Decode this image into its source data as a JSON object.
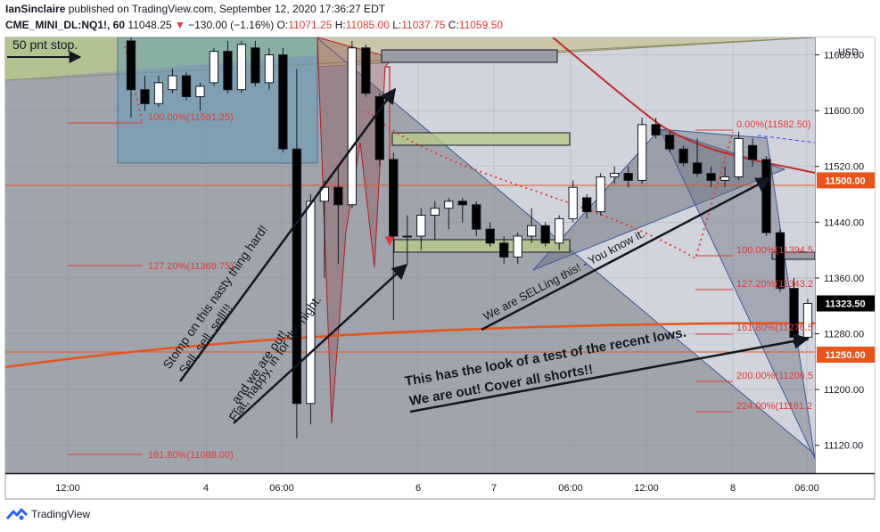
{
  "header": {
    "author": "IanSinclaire",
    "published_text": "published on TradingView.com, September 12, 2020 17:36:27 EDT",
    "symbol": "CME_MINI_DL:NQ1!, 60",
    "last": "11048.25",
    "change": "−130.00 (−1.16%)",
    "o_label": "O:",
    "o_value": "11071.25",
    "h_label": "H:",
    "h_value": "11085.00",
    "l_label": "L:",
    "l_value": "11037.75",
    "c_label": "C:",
    "c_value": "11059.50"
  },
  "footer": {
    "brand": "TradingView"
  },
  "colors": {
    "up": "#ffffff",
    "down": "#000000",
    "price_label": "#e8541a",
    "fib": "#e53935",
    "ma": "#c62828",
    "annot": "#131722"
  },
  "chart_data": {
    "type": "candlestick",
    "currency": "USD",
    "ylim": [
      11080,
      11705
    ],
    "y_ticks": [
      11120,
      11200,
      11280,
      11360,
      11440,
      11520,
      11600,
      11680
    ],
    "y_tick_labels": [
      "11120.00",
      "11200.00",
      "11280.00",
      "11360.00",
      "11440.00",
      "11520.00",
      "11600.00",
      "11680.00"
    ],
    "x_tick_labels": [
      "12:00",
      "4",
      "06:00",
      "6",
      "7",
      "06:00",
      "12:00",
      "8",
      "06:00"
    ],
    "price_labels": [
      {
        "value": 11500,
        "text": "11500.00",
        "color": "#e8541a"
      },
      {
        "value": 11323.5,
        "text": "11323.50",
        "color": "#000000"
      },
      {
        "value": 11250,
        "text": "11250.00",
        "color": "#e8541a"
      }
    ],
    "fib_labels": [
      {
        "text": "100.00%(11591.25)",
        "value": 11591.25
      },
      {
        "text": "127.20%(11369.75)",
        "value": 11369.75
      },
      {
        "text": "161.80%(11088.00)",
        "value": 11088
      },
      {
        "text": "0.00%(11582.50)",
        "value": 11582.5
      },
      {
        "text": "100.00%(11394.5",
        "value": 11394.5
      },
      {
        "text": "127.20%(11343.2",
        "value": 11343.2
      },
      {
        "text": "161.80%(11276.5",
        "value": 11276.5
      },
      {
        "text": "200.00%(11206.5",
        "value": 11206.5
      },
      {
        "text": "224.00%(11161.2",
        "value": 11161.2
      }
    ],
    "candles": [
      {
        "o": 11700,
        "h": 11705,
        "l": 11590,
        "c": 11630
      },
      {
        "o": 11630,
        "h": 11650,
        "l": 11600,
        "c": 11610
      },
      {
        "o": 11610,
        "h": 11650,
        "l": 11605,
        "c": 11640
      },
      {
        "o": 11630,
        "h": 11660,
        "l": 11625,
        "c": 11650
      },
      {
        "o": 11650,
        "h": 11655,
        "l": 11615,
        "c": 11620
      },
      {
        "o": 11620,
        "h": 11640,
        "l": 11600,
        "c": 11635
      },
      {
        "o": 11640,
        "h": 11690,
        "l": 11635,
        "c": 11685
      },
      {
        "o": 11685,
        "h": 11700,
        "l": 11625,
        "c": 11630
      },
      {
        "o": 11630,
        "h": 11700,
        "l": 11625,
        "c": 11695
      },
      {
        "o": 11690,
        "h": 11700,
        "l": 11635,
        "c": 11640
      },
      {
        "o": 11640,
        "h": 11690,
        "l": 11630,
        "c": 11680
      },
      {
        "o": 11680,
        "h": 11690,
        "l": 11540,
        "c": 11545
      },
      {
        "o": 11545,
        "h": 11660,
        "l": 11130,
        "c": 11180
      },
      {
        "o": 11180,
        "h": 11480,
        "l": 11150,
        "c": 11470
      },
      {
        "o": 11470,
        "h": 11500,
        "l": 11360,
        "c": 11490
      },
      {
        "o": 11490,
        "h": 11520,
        "l": 11380,
        "c": 11465
      },
      {
        "o": 11465,
        "h": 11700,
        "l": 11460,
        "c": 11690
      },
      {
        "o": 11690,
        "h": 11695,
        "l": 11620,
        "c": 11625
      },
      {
        "o": 11620,
        "h": 11625,
        "l": 11520,
        "c": 11530
      },
      {
        "o": 11530,
        "h": 11540,
        "l": 11300,
        "c": 11420
      },
      {
        "o": 11420,
        "h": 11450,
        "l": 11380,
        "c": 11420
      },
      {
        "o": 11420,
        "h": 11460,
        "l": 11400,
        "c": 11450
      },
      {
        "o": 11450,
        "h": 11470,
        "l": 11415,
        "c": 11460
      },
      {
        "o": 11460,
        "h": 11475,
        "l": 11430,
        "c": 11470
      },
      {
        "o": 11470,
        "h": 11475,
        "l": 11440,
        "c": 11465
      },
      {
        "o": 11465,
        "h": 11470,
        "l": 11420,
        "c": 11430
      },
      {
        "o": 11430,
        "h": 11440,
        "l": 11405,
        "c": 11410
      },
      {
        "o": 11410,
        "h": 11420,
        "l": 11380,
        "c": 11390
      },
      {
        "o": 11390,
        "h": 11425,
        "l": 11380,
        "c": 11420
      },
      {
        "o": 11420,
        "h": 11460,
        "l": 11410,
        "c": 11435
      },
      {
        "o": 11435,
        "h": 11440,
        "l": 11405,
        "c": 11410
      },
      {
        "o": 11410,
        "h": 11450,
        "l": 11400,
        "c": 11445
      },
      {
        "o": 11445,
        "h": 11500,
        "l": 11440,
        "c": 11490
      },
      {
        "o": 11475,
        "h": 11480,
        "l": 11445,
        "c": 11455
      },
      {
        "o": 11455,
        "h": 11510,
        "l": 11450,
        "c": 11505
      },
      {
        "o": 11505,
        "h": 11520,
        "l": 11495,
        "c": 11510
      },
      {
        "o": 11510,
        "h": 11520,
        "l": 11490,
        "c": 11500
      },
      {
        "o": 11500,
        "h": 11590,
        "l": 11495,
        "c": 11580
      },
      {
        "o": 11580,
        "h": 11590,
        "l": 11560,
        "c": 11565
      },
      {
        "o": 11565,
        "h": 11570,
        "l": 11540,
        "c": 11545
      },
      {
        "o": 11545,
        "h": 11550,
        "l": 11520,
        "c": 11525
      },
      {
        "o": 11525,
        "h": 11560,
        "l": 11505,
        "c": 11510
      },
      {
        "o": 11510,
        "h": 11520,
        "l": 11490,
        "c": 11500
      },
      {
        "o": 11500,
        "h": 11520,
        "l": 11490,
        "c": 11505
      },
      {
        "o": 11505,
        "h": 11570,
        "l": 11500,
        "c": 11560
      },
      {
        "o": 11550,
        "h": 11560,
        "l": 11520,
        "c": 11530
      },
      {
        "o": 11530,
        "h": 11535,
        "l": 11420,
        "c": 11425
      },
      {
        "o": 11425,
        "h": 11430,
        "l": 11340,
        "c": 11345
      },
      {
        "o": 11345,
        "h": 11360,
        "l": 11265,
        "c": 11275
      },
      {
        "o": 11275,
        "h": 11330,
        "l": 11270,
        "c": 11323.5
      }
    ],
    "annotations": [
      {
        "id": "stop",
        "text": "50 pnt stop."
      },
      {
        "id": "stomp",
        "text": "Stomp on this nasty thing hard!"
      },
      {
        "id": "sell",
        "text": "Sell, sell, sell!!!"
      },
      {
        "id": "out",
        "text": "... and we are out!"
      },
      {
        "id": "flat",
        "text": "Flat, happy, in for the night."
      },
      {
        "id": "selling",
        "text": "We are SELLing this! - You know it."
      },
      {
        "id": "test1",
        "text": "This has the look of a test of the recent lows."
      },
      {
        "id": "test2",
        "text": "We are out! Cover all shorts!!"
      }
    ]
  }
}
